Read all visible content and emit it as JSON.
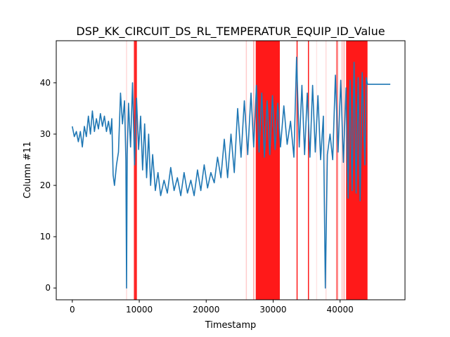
{
  "chart_data": {
    "type": "line",
    "title": "DSP_KK_CIRCUIT_DS_RL_TEMPERATUR_EQUIP_ID_Value",
    "xlabel": "Timestamp",
    "ylabel": "Column #11",
    "xlim": [
      -2400,
      49700
    ],
    "ylim": [
      -2.3,
      48.2
    ],
    "x_ticks": [
      0,
      10000,
      20000,
      30000,
      40000
    ],
    "x_tick_labels": [
      "0",
      "10000",
      "20000",
      "30000",
      "40000"
    ],
    "y_ticks": [
      0,
      10,
      20,
      30,
      40
    ],
    "y_tick_labels": [
      "0",
      "10",
      "20",
      "30",
      "40"
    ],
    "grid": false,
    "series": [
      {
        "name": "",
        "color": "#1f77b4",
        "points": [
          [
            0,
            31.5
          ],
          [
            300,
            29.5
          ],
          [
            600,
            30.5
          ],
          [
            900,
            28.5
          ],
          [
            1200,
            30.5
          ],
          [
            1500,
            27.5
          ],
          [
            1800,
            31.5
          ],
          [
            2100,
            29.5
          ],
          [
            2400,
            33.5
          ],
          [
            2700,
            30.0
          ],
          [
            3000,
            34.5
          ],
          [
            3300,
            30.5
          ],
          [
            3600,
            33.0
          ],
          [
            3900,
            31.0
          ],
          [
            4200,
            34.0
          ],
          [
            4500,
            31.5
          ],
          [
            4800,
            33.5
          ],
          [
            5100,
            30.5
          ],
          [
            5400,
            32.5
          ],
          [
            5700,
            30.0
          ],
          [
            5900,
            33.0
          ],
          [
            6100,
            22.0
          ],
          [
            6300,
            20.0
          ],
          [
            6600,
            24.0
          ],
          [
            6900,
            26.5
          ],
          [
            7200,
            38.0
          ],
          [
            7500,
            32.0
          ],
          [
            7800,
            36.5
          ],
          [
            8000,
            25.0
          ],
          [
            8100,
            0.0
          ],
          [
            8200,
            26.0
          ],
          [
            8400,
            36.0
          ],
          [
            8700,
            27.5
          ],
          [
            9000,
            40.0
          ],
          [
            9300,
            24.0
          ],
          [
            9600,
            37.0
          ],
          [
            9900,
            27.0
          ],
          [
            10200,
            33.5
          ],
          [
            10500,
            23.0
          ],
          [
            10800,
            32.0
          ],
          [
            11100,
            21.5
          ],
          [
            11400,
            30.0
          ],
          [
            11700,
            20.0
          ],
          [
            12000,
            26.0
          ],
          [
            12400,
            19.0
          ],
          [
            12800,
            22.5
          ],
          [
            13200,
            18.0
          ],
          [
            13700,
            21.0
          ],
          [
            14200,
            18.5
          ],
          [
            14700,
            23.5
          ],
          [
            15200,
            19.0
          ],
          [
            15700,
            21.5
          ],
          [
            16200,
            18.0
          ],
          [
            16700,
            22.5
          ],
          [
            17200,
            18.5
          ],
          [
            17700,
            21.0
          ],
          [
            18200,
            18.0
          ],
          [
            18700,
            23.0
          ],
          [
            19200,
            19.0
          ],
          [
            19700,
            24.0
          ],
          [
            20200,
            19.5
          ],
          [
            20700,
            22.5
          ],
          [
            21200,
            20.5
          ],
          [
            21700,
            25.5
          ],
          [
            22200,
            21.5
          ],
          [
            22700,
            29.0
          ],
          [
            23200,
            21.5
          ],
          [
            23700,
            30.0
          ],
          [
            24200,
            22.5
          ],
          [
            24700,
            35.0
          ],
          [
            25200,
            25.5
          ],
          [
            25700,
            36.5
          ],
          [
            26200,
            26.0
          ],
          [
            26700,
            38.0
          ],
          [
            27100,
            27.5
          ],
          [
            27500,
            39.5
          ],
          [
            27900,
            26.5
          ],
          [
            28300,
            38.0
          ],
          [
            28700,
            25.5
          ],
          [
            29100,
            36.5
          ],
          [
            29500,
            26.0
          ],
          [
            29900,
            37.5
          ],
          [
            30300,
            27.0
          ],
          [
            30700,
            36.0
          ],
          [
            31100,
            27.5
          ],
          [
            31600,
            35.5
          ],
          [
            32100,
            28.0
          ],
          [
            32600,
            32.5
          ],
          [
            33100,
            25.5
          ],
          [
            33500,
            45.0
          ],
          [
            33900,
            27.5
          ],
          [
            34300,
            39.5
          ],
          [
            34700,
            26.0
          ],
          [
            35100,
            38.0
          ],
          [
            35500,
            25.5
          ],
          [
            35900,
            39.5
          ],
          [
            36300,
            26.5
          ],
          [
            36700,
            37.5
          ],
          [
            37100,
            25.0
          ],
          [
            37500,
            33.5
          ],
          [
            37800,
            0.0
          ],
          [
            38100,
            26.0
          ],
          [
            38500,
            30.0
          ],
          [
            38900,
            25.0
          ],
          [
            39300,
            41.5
          ],
          [
            39700,
            26.5
          ],
          [
            40100,
            40.5
          ],
          [
            40500,
            24.5
          ],
          [
            40900,
            39.0
          ],
          [
            41200,
            17.5
          ],
          [
            41500,
            40.5
          ],
          [
            41800,
            19.0
          ],
          [
            42100,
            44.0
          ],
          [
            42400,
            18.5
          ],
          [
            42700,
            41.0
          ],
          [
            43000,
            17.0
          ],
          [
            43300,
            42.0
          ],
          [
            43700,
            24.0
          ],
          [
            43900,
            41.0
          ],
          [
            44100,
            39.7
          ],
          [
            47500,
            39.7
          ]
        ]
      }
    ],
    "highlight_color": "#ff0000",
    "highlight_bands": [
      {
        "x0": 9200,
        "x1": 9650,
        "alpha": 0.85
      },
      {
        "x0": 27400,
        "x1": 31000,
        "alpha": 0.9
      },
      {
        "x0": 33500,
        "x1": 33650,
        "alpha": 0.9
      },
      {
        "x0": 35200,
        "x1": 35350,
        "alpha": 0.9
      },
      {
        "x0": 39400,
        "x1": 39700,
        "alpha": 0.5
      },
      {
        "x0": 40900,
        "x1": 44100,
        "alpha": 0.9
      }
    ],
    "highlight_lines": [
      {
        "x": 8100,
        "alpha": 0.15
      },
      {
        "x": 26000,
        "alpha": 0.2
      },
      {
        "x": 27100,
        "alpha": 0.35
      },
      {
        "x": 36500,
        "alpha": 0.1
      },
      {
        "x": 37900,
        "alpha": 0.15
      },
      {
        "x": 40300,
        "alpha": 0.25
      },
      {
        "x": 40600,
        "alpha": 0.35
      }
    ]
  }
}
